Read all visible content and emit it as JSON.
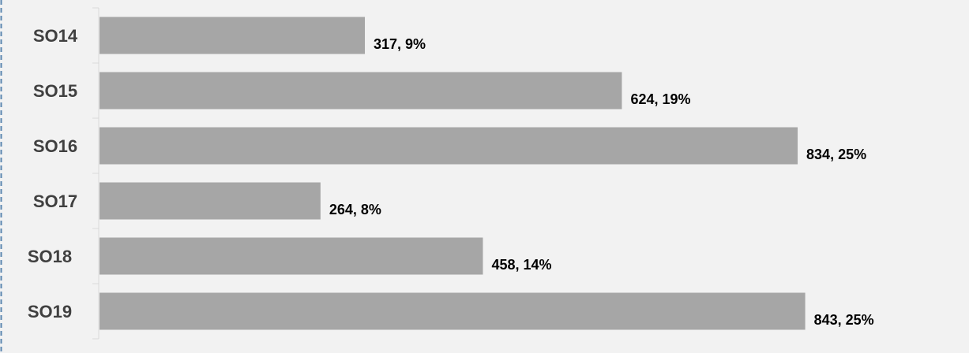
{
  "chart_data": {
    "type": "bar",
    "orientation": "horizontal",
    "categories": [
      "SO14",
      "SO15",
      "SO16",
      "SO17",
      "SO18",
      "SO19"
    ],
    "values": [
      317,
      624,
      834,
      264,
      458,
      843
    ],
    "percents": [
      "9%",
      "19%",
      "25%",
      "8%",
      "14%",
      "25%"
    ],
    "data_labels": [
      "317, 9%",
      "624, 19%",
      "834, 25%",
      "264, 8%",
      "458, 14%",
      "843, 25%"
    ],
    "title": "",
    "xlabel": "",
    "ylabel": "",
    "xlim": [
      0,
      1000
    ],
    "grid": false,
    "legend": "none",
    "colors": {
      "bar": "#a6a6a6",
      "background": "#f2f2f2",
      "axis": "#d9d9d9",
      "border": "#5b86b0",
      "category_text": "#404040",
      "label_text": "#000000"
    }
  }
}
